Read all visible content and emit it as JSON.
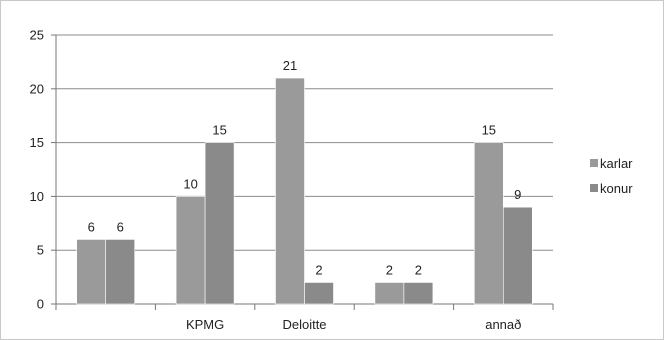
{
  "colors": {
    "karlar": "#9a9a9a",
    "konur": "#8a8a8a",
    "axis": "#777777",
    "grid": "#8c8c8c",
    "frame": "#b0b0b0",
    "text": "#222222"
  },
  "chart_data": {
    "type": "bar",
    "categories": [
      "",
      "KPMG",
      "Deloitte",
      "",
      "annað"
    ],
    "series": [
      {
        "name": "karlar",
        "values": [
          6,
          10,
          21,
          2,
          15
        ]
      },
      {
        "name": "konur",
        "values": [
          6,
          15,
          2,
          2,
          9
        ]
      }
    ],
    "ylim": [
      0,
      25
    ],
    "yticks": [
      "0",
      "5",
      "10",
      "15",
      "20",
      "25"
    ],
    "grid": true,
    "legend": "right"
  }
}
